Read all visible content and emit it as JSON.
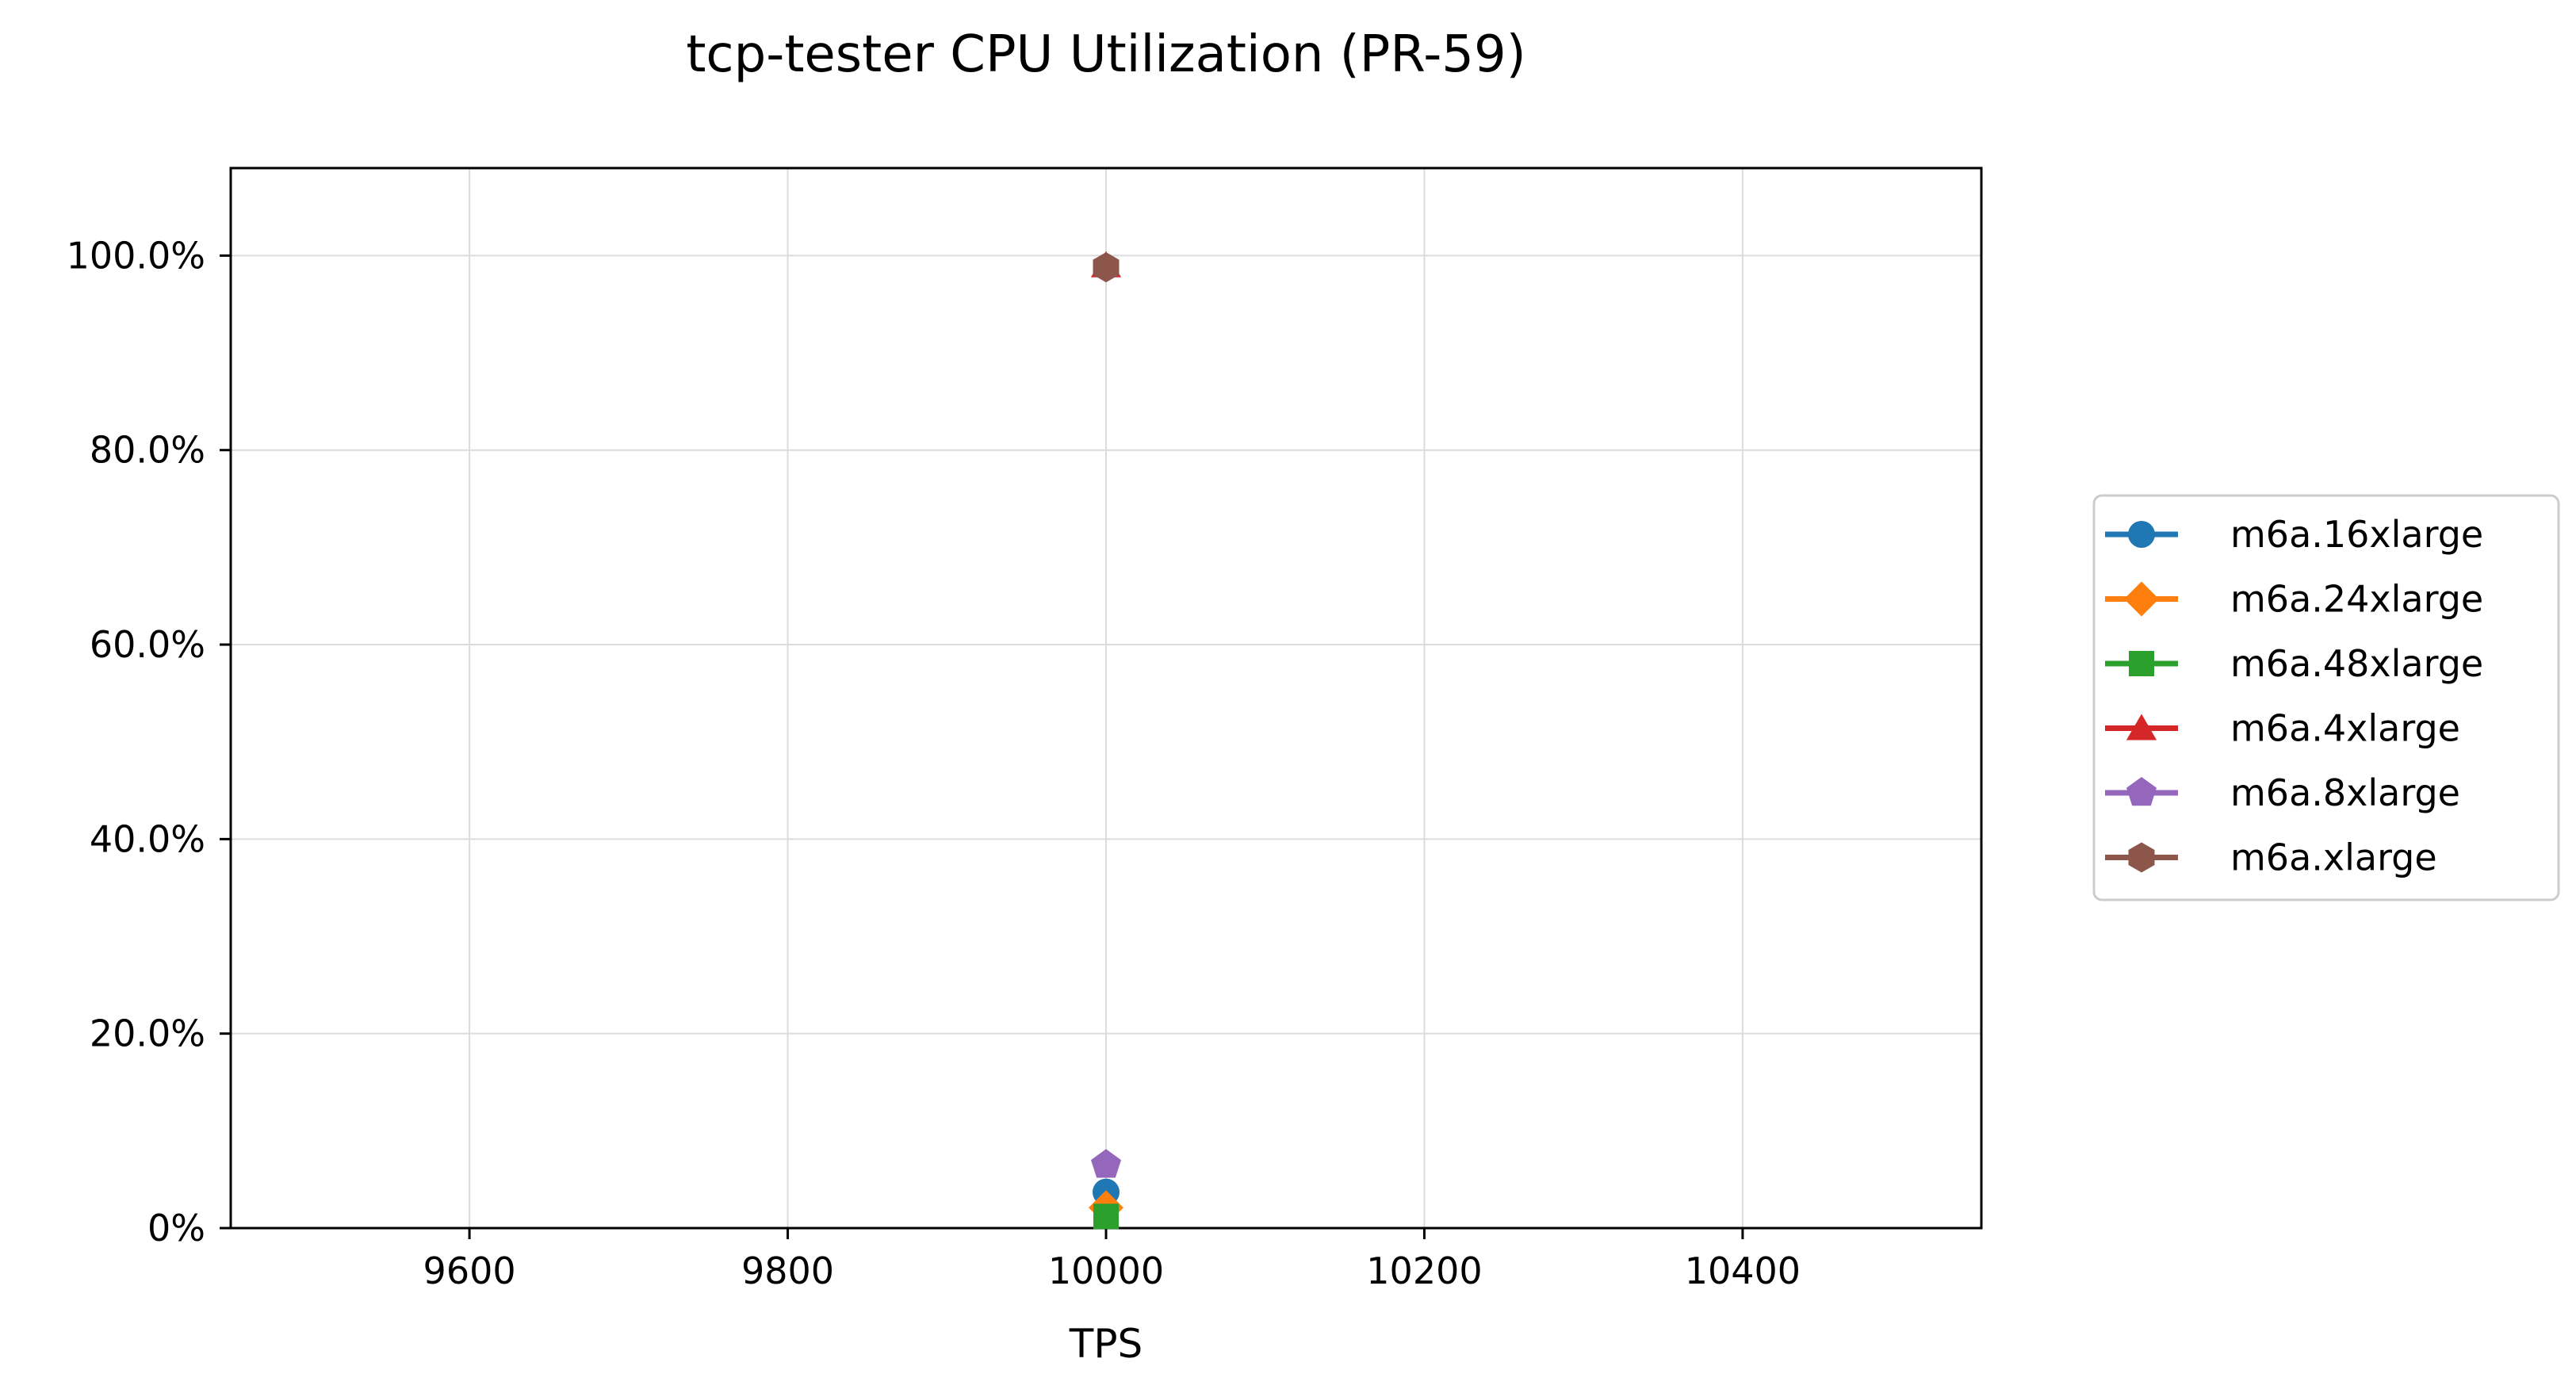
{
  "chart_data": {
    "type": "line",
    "title": "tcp-tester CPU Utilization (PR-59)",
    "xlabel": "TPS",
    "ylabel": "",
    "xlim": [
      9450,
      10550
    ],
    "ylim": [
      0,
      1.09
    ],
    "x_ticks": [
      9600,
      9800,
      10000,
      10200,
      10400
    ],
    "x_tick_labels": [
      "9600",
      "9800",
      "10000",
      "10200",
      "10400"
    ],
    "y_ticks": [
      0,
      0.2,
      0.4,
      0.6,
      0.8,
      1.0
    ],
    "y_tick_labels": [
      "0%",
      "20.0%",
      "40.0%",
      "60.0%",
      "80.0%",
      "100.0%"
    ],
    "grid": true,
    "legend_position": "outside-right",
    "series": [
      {
        "name": "m6a.16xlarge",
        "color": "#1f77b4",
        "marker": "circle",
        "x": [
          10000
        ],
        "y": [
          0.037
        ]
      },
      {
        "name": "m6a.24xlarge",
        "color": "#ff7f0e",
        "marker": "diamond",
        "x": [
          10000
        ],
        "y": [
          0.021
        ]
      },
      {
        "name": "m6a.48xlarge",
        "color": "#2ca02c",
        "marker": "square",
        "x": [
          10000
        ],
        "y": [
          0.012
        ]
      },
      {
        "name": "m6a.4xlarge",
        "color": "#d62728",
        "marker": "triangle",
        "x": [
          10000
        ],
        "y": [
          0.99
        ]
      },
      {
        "name": "m6a.8xlarge",
        "color": "#9467bd",
        "marker": "pentagon",
        "x": [
          10000
        ],
        "y": [
          0.065
        ]
      },
      {
        "name": "m6a.xlarge",
        "color": "#8c564b",
        "marker": "hexagon",
        "x": [
          10000
        ],
        "y": [
          0.988
        ]
      }
    ]
  }
}
